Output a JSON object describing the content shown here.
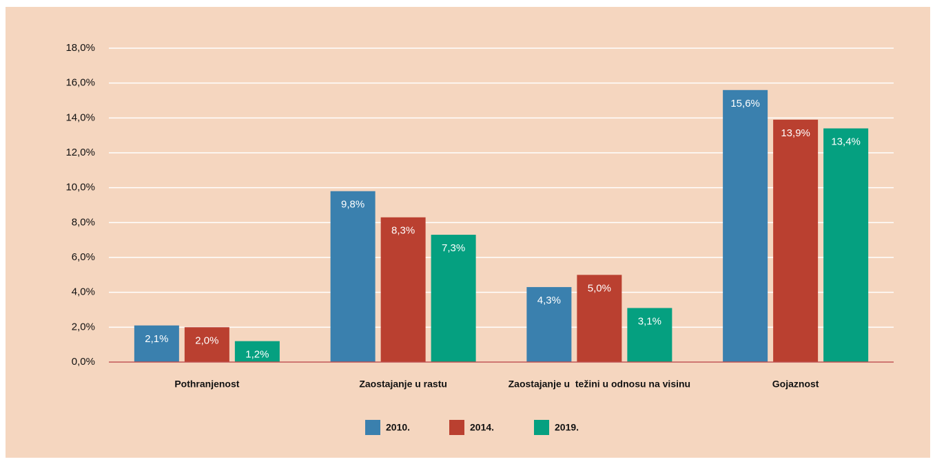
{
  "chart_data": {
    "type": "bar",
    "categories": [
      "Pothranjenost",
      "Zaostajanje u rastu",
      "Zaostajanje u  težini u odnosu na visinu",
      "Gojaznost"
    ],
    "series": [
      {
        "name": "2010.",
        "color": "#3a80ae",
        "values": [
          2.1,
          9.8,
          4.3,
          15.6
        ],
        "value_labels": [
          "2,1%",
          "9,8%",
          "4,3%",
          "15,6%"
        ]
      },
      {
        "name": "2014.",
        "color": "#ba4030",
        "values": [
          2.0,
          8.3,
          5.0,
          13.9
        ],
        "value_labels": [
          "2,0%",
          "8,3%",
          "5,0%",
          "13,9%"
        ]
      },
      {
        "name": "2019.",
        "color": "#05a080",
        "values": [
          1.2,
          7.3,
          3.1,
          13.4
        ],
        "value_labels": [
          "1,2%",
          "7,3%",
          "3,1%",
          "13,4%"
        ]
      }
    ],
    "ylim": [
      0,
      18
    ],
    "yticks": [
      {
        "value": 0,
        "label": "0,0%"
      },
      {
        "value": 2,
        "label": "2,0%"
      },
      {
        "value": 4,
        "label": "4,0%"
      },
      {
        "value": 6,
        "label": "6,0%"
      },
      {
        "value": 8,
        "label": "8,0%"
      },
      {
        "value": 10,
        "label": "10,0%"
      },
      {
        "value": 12,
        "label": "12,0%"
      },
      {
        "value": 14,
        "label": "14,0%"
      },
      {
        "value": 16,
        "label": "16,0%"
      },
      {
        "value": 18,
        "label": "18,0%"
      }
    ],
    "grid": true,
    "legend": "bottom"
  }
}
